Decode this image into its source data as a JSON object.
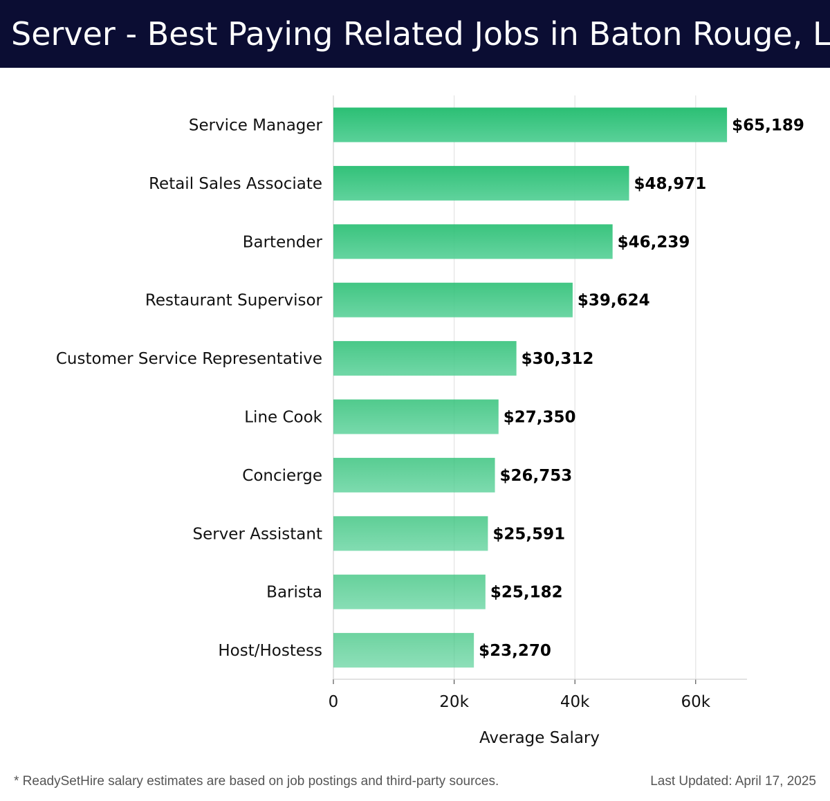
{
  "header": {
    "title": "Server - Best Paying Related Jobs in Baton Rouge, LA"
  },
  "footer": {
    "note": "* ReadySetHire salary estimates are based on job postings and third-party sources.",
    "updated": "Last Updated: April 17, 2025"
  },
  "chart_data": {
    "type": "bar",
    "orientation": "horizontal",
    "title": "Server - Best Paying Related Jobs in Baton Rouge, LA",
    "xlabel": "Average Salary",
    "ylabel": "",
    "categories": [
      "Service Manager",
      "Retail Sales Associate",
      "Bartender",
      "Restaurant Supervisor",
      "Customer Service Representative",
      "Line Cook",
      "Concierge",
      "Server Assistant",
      "Barista",
      "Host/Hostess"
    ],
    "values": [
      65189,
      48971,
      46239,
      39624,
      30312,
      27350,
      26753,
      25591,
      25182,
      23270
    ],
    "value_labels": [
      "$65,189",
      "$48,971",
      "$46,239",
      "$39,624",
      "$30,312",
      "$27,350",
      "$26,753",
      "$25,591",
      "$25,182",
      "$23,270"
    ],
    "xlim": [
      0,
      68500
    ],
    "xticks": [
      0,
      20000,
      40000,
      60000
    ],
    "xtick_labels": [
      "0",
      "20k",
      "40k",
      "60k"
    ],
    "grid": "vertical",
    "colors": {
      "bar_top": "#2bbf74",
      "bar_bottom": "#5ad199",
      "grid": "#e3e3e3",
      "axis": "#d0d0d0",
      "header_bg": "#0b0d33"
    }
  }
}
